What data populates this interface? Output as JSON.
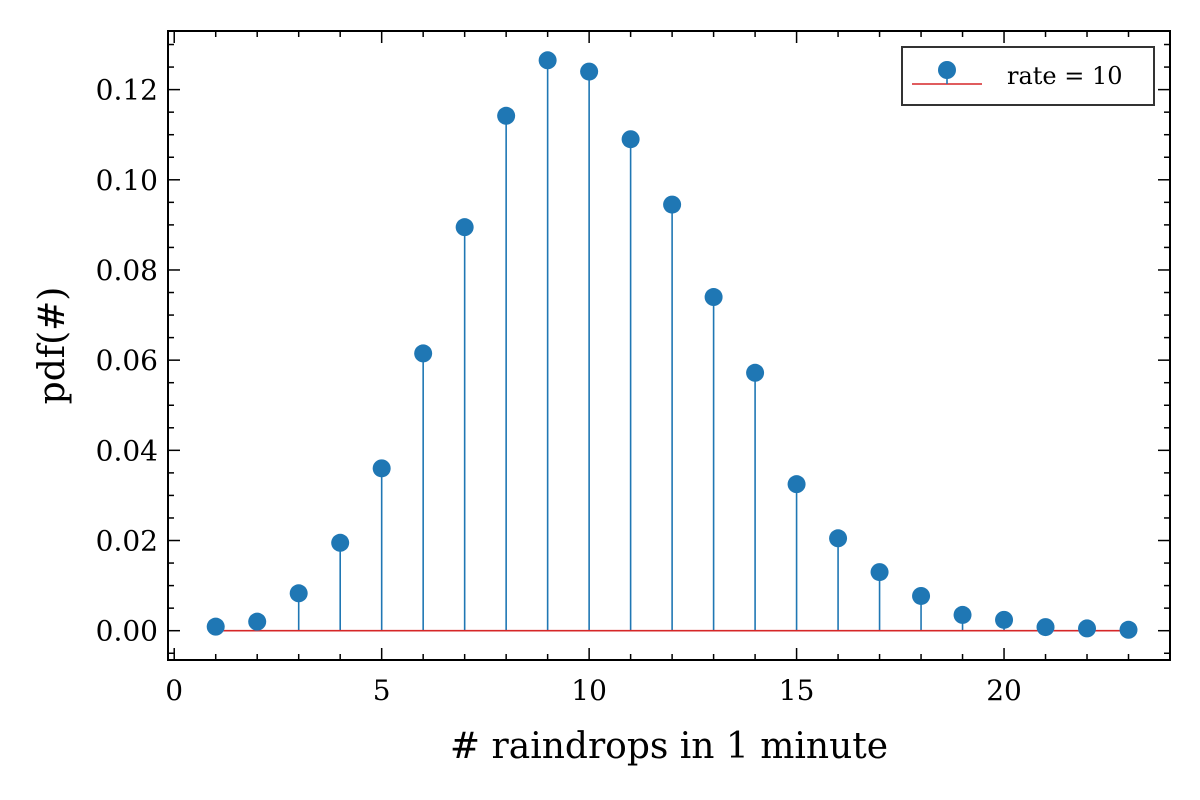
{
  "chart_data": {
    "type": "stem",
    "xlabel": "# raindrops in 1 minute",
    "ylabel": "pdf(#)",
    "xlim": [
      -0.15,
      24.0
    ],
    "ylim": [
      -0.0065,
      0.133
    ],
    "xticks": [
      0,
      5,
      10,
      15,
      20
    ],
    "xtick_labels": [
      "0",
      "5",
      "10",
      "15",
      "20"
    ],
    "yticks": [
      0.0,
      0.02,
      0.04,
      0.06,
      0.08,
      0.1,
      0.12
    ],
    "ytick_labels": [
      "0.00",
      "0.02",
      "0.04",
      "0.06",
      "0.08",
      "0.10",
      "0.12"
    ],
    "grid": false,
    "legend": {
      "position": "top-right",
      "entries": [
        "rate = 10"
      ]
    },
    "series": [
      {
        "name": "rate = 10",
        "color": "#1f77b4",
        "baseline_color": "#d62728",
        "x": [
          1,
          2,
          3,
          4,
          5,
          6,
          7,
          8,
          9,
          10,
          11,
          12,
          13,
          14,
          15,
          16,
          17,
          18,
          19,
          20,
          21,
          22,
          23
        ],
        "y": [
          0.0009,
          0.002,
          0.0083,
          0.0195,
          0.036,
          0.0615,
          0.0895,
          0.1142,
          0.1265,
          0.124,
          0.109,
          0.0945,
          0.074,
          0.0572,
          0.0325,
          0.0205,
          0.013,
          0.0077,
          0.0035,
          0.0024,
          0.0008,
          0.0005,
          0.0002
        ]
      }
    ]
  }
}
